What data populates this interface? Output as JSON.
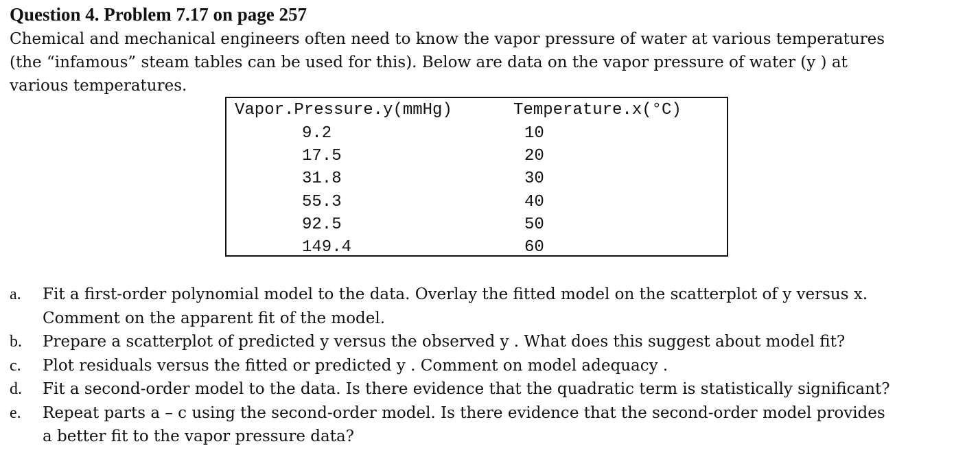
{
  "heading": "Question 4. Problem 7.17 on page 257",
  "intro_lines": [
    "Chemical and mechanical engineers often need to know the vapor pressure of water at various temperatures",
    "(the “infamous” steam tables can be used for this). Below are data on the vapor pressure of water (y ) at",
    "various temperatures."
  ],
  "table": {
    "headers": [
      "Vapor.Pressure.y(mmHg)",
      "Temperature.x(°C)"
    ],
    "rows": [
      {
        "y": "9.2",
        "x": "10"
      },
      {
        "y": "17.5",
        "x": "20"
      },
      {
        "y": "31.8",
        "x": "30"
      },
      {
        "y": "55.3",
        "x": "40"
      },
      {
        "y": "92.5",
        "x": "50"
      },
      {
        "y": "149.4",
        "x": "60"
      }
    ]
  },
  "questions": [
    {
      "letter": "a.",
      "lines": [
        "Fit a first-order polynomial model to the data. Overlay the fitted model on the scatterplot of y versus x.",
        "Comment on the apparent fit of the model."
      ]
    },
    {
      "letter": "b.",
      "lines": [
        "Prepare a scatterplot of predicted y versus the observed y . What does this suggest about model fit?"
      ]
    },
    {
      "letter": "c.",
      "lines": [
        "Plot residuals versus the fitted or predicted y . Comment on model adequacy ."
      ]
    },
    {
      "letter": "d.",
      "lines": [
        "Fit a second-order model to the data. Is there evidence that the quadratic term is statistically significant?"
      ]
    },
    {
      "letter": "e.",
      "lines": [
        "Repeat parts a – c using the second-order model. Is there evidence that the second-order model provides",
        "a better fit to the vapor pressure data?"
      ]
    }
  ]
}
